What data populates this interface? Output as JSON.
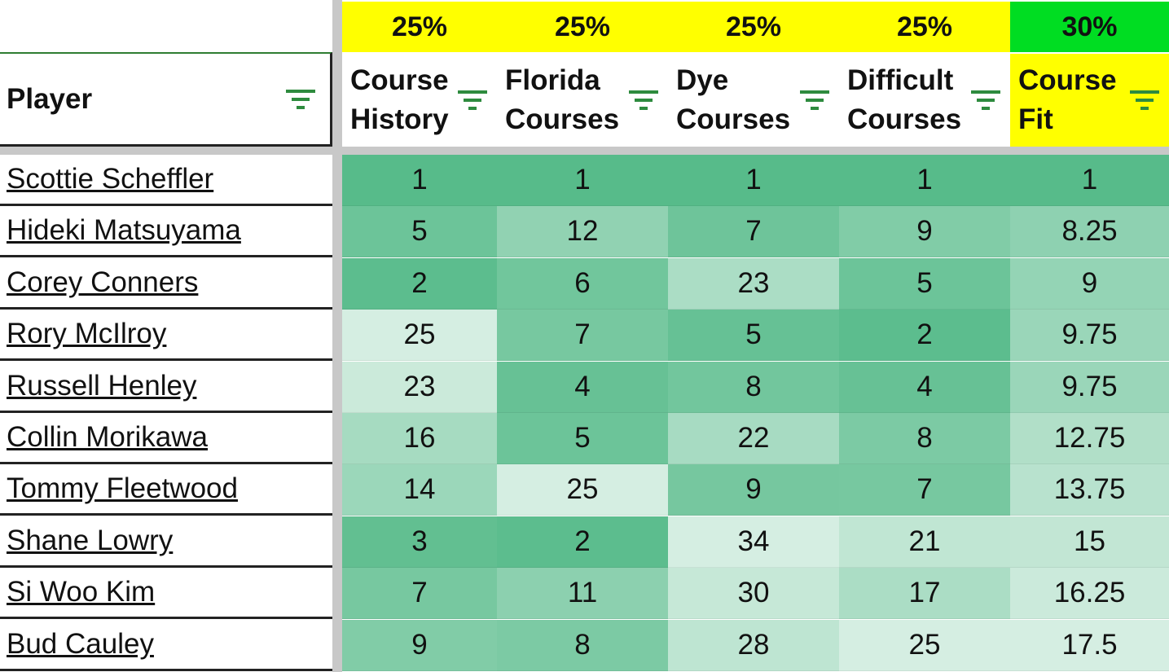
{
  "weights": [
    "25%",
    "25%",
    "25%",
    "25%",
    "30%"
  ],
  "headers": {
    "player": "Player",
    "columns": [
      "Course\nHistory",
      "Florida\nCourses",
      "Dye\nCourses",
      "Difficult\nCourses",
      "Course\nFit"
    ]
  },
  "icons": {
    "filter": "filter-icon"
  },
  "colors": {
    "weight_yellow": "#ffff00",
    "weight_green": "#00dd22",
    "scale_dark": "#57bb8a",
    "scale_light": "#ffffff"
  },
  "rows": [
    {
      "player": "Scottie Scheffler",
      "values": [
        "1",
        "1",
        "1",
        "1",
        "1"
      ]
    },
    {
      "player": "Hideki Matsuyama",
      "values": [
        "5",
        "12",
        "7",
        "9",
        "8.25"
      ]
    },
    {
      "player": "Corey Conners",
      "values": [
        "2",
        "6",
        "23",
        "5",
        "9"
      ]
    },
    {
      "player": "Rory McIlroy",
      "values": [
        "25",
        "7",
        "5",
        "2",
        "9.75"
      ]
    },
    {
      "player": "Russell Henley",
      "values": [
        "23",
        "4",
        "8",
        "4",
        "9.75"
      ]
    },
    {
      "player": "Collin Morikawa",
      "values": [
        "16",
        "5",
        "22",
        "8",
        "12.75"
      ]
    },
    {
      "player": "Tommy Fleetwood",
      "values": [
        "14",
        "25",
        "9",
        "7",
        "13.75"
      ]
    },
    {
      "player": "Shane Lowry",
      "values": [
        "3",
        "2",
        "34",
        "21",
        "15"
      ]
    },
    {
      "player": "Si Woo Kim",
      "values": [
        "7",
        "11",
        "30",
        "17",
        "16.25"
      ]
    },
    {
      "player": "Bud Cauley",
      "values": [
        "9",
        "8",
        "28",
        "25",
        "17.5"
      ]
    }
  ]
}
